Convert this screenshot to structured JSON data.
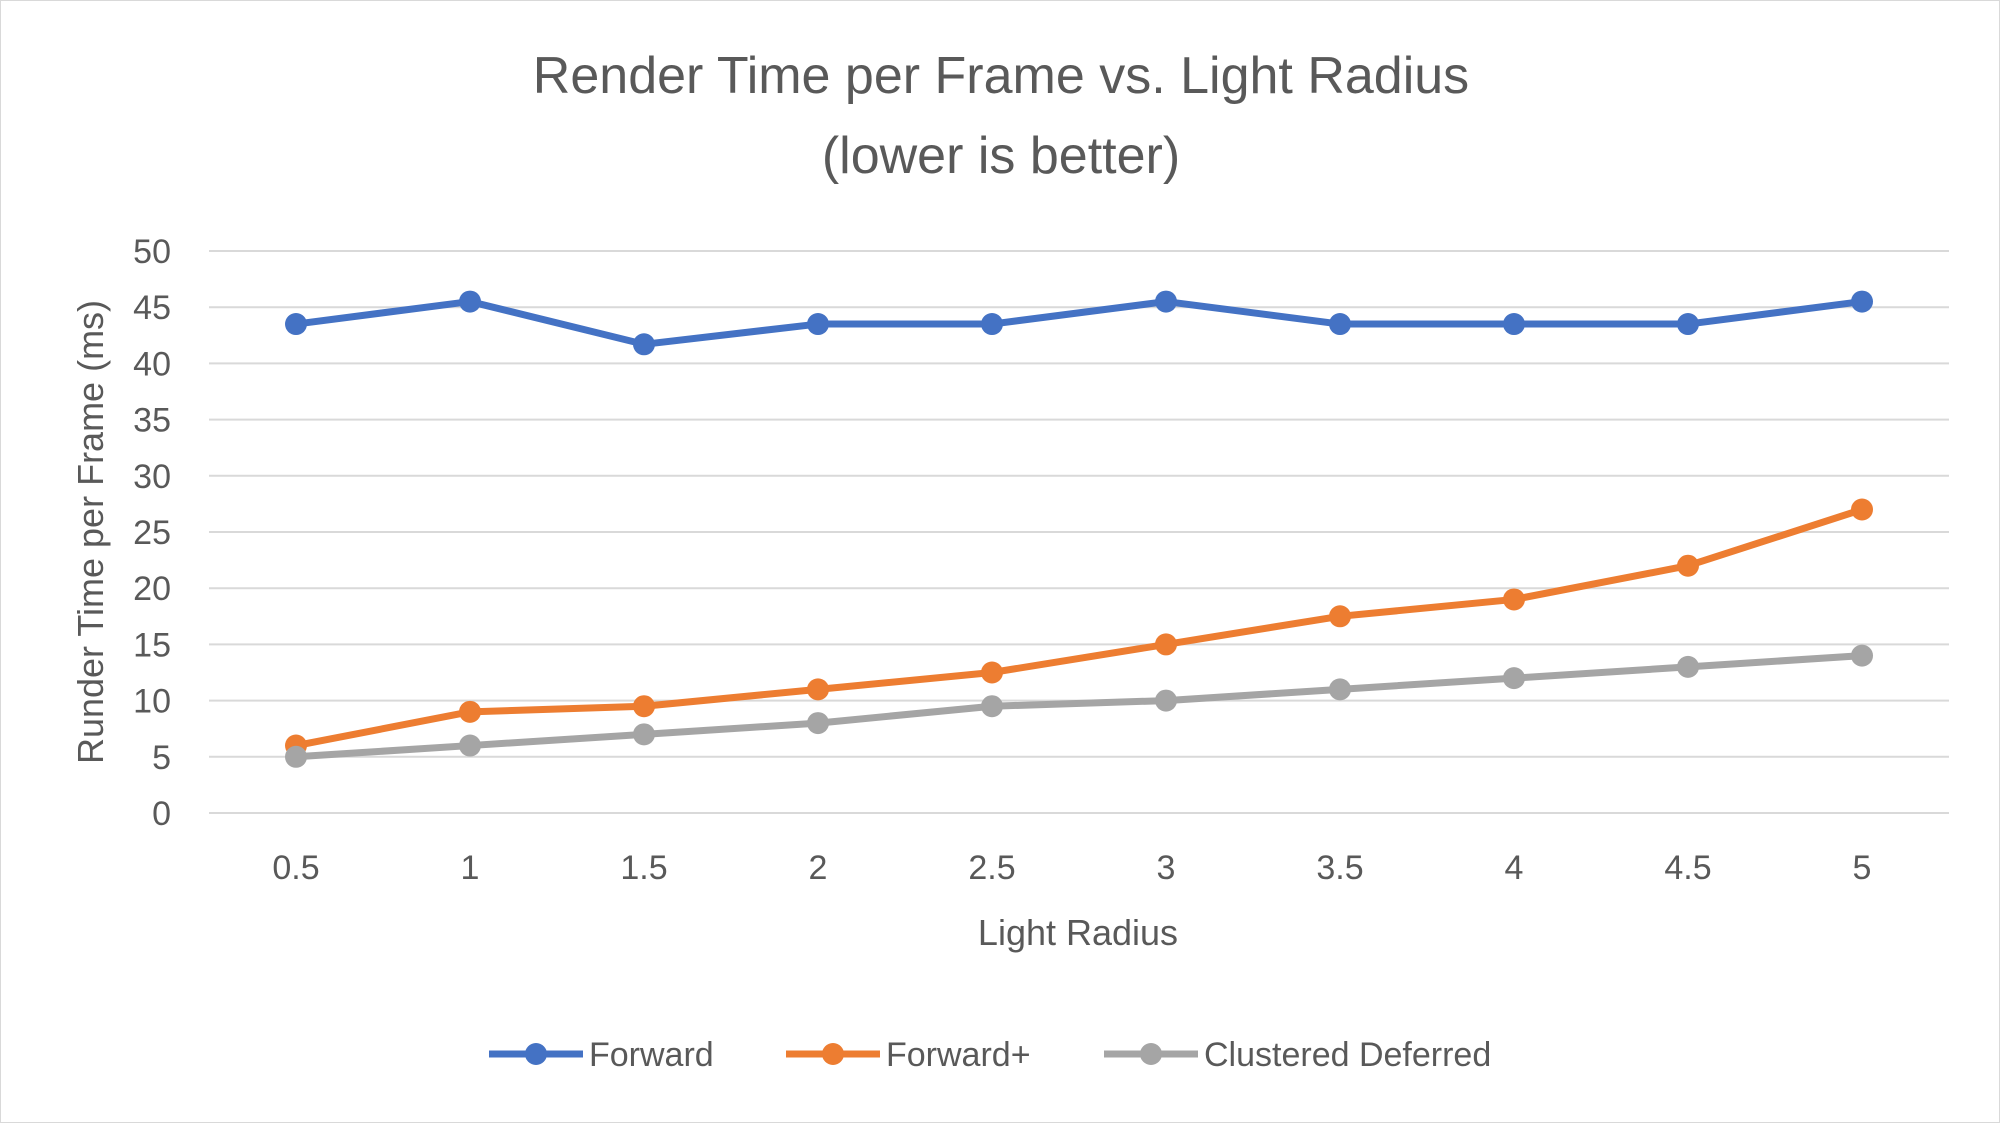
{
  "chart_data": {
    "type": "line",
    "title": [
      "Render Time per Frame vs. Light Radius",
      "(lower is better)"
    ],
    "xlabel": "Light Radius",
    "ylabel": "Runder Time per Frame (ms)",
    "categories": [
      "0.5",
      "1",
      "1.5",
      "2",
      "2.5",
      "3",
      "3.5",
      "4",
      "4.5",
      "5"
    ],
    "ylim": [
      0,
      50
    ],
    "yticks": [
      "0",
      "5",
      "10",
      "15",
      "20",
      "25",
      "30",
      "35",
      "40",
      "45",
      "50"
    ],
    "grid": "horizontal",
    "legend_position": "bottom",
    "series": [
      {
        "name": "Forward",
        "color": "#4472c4",
        "values": [
          43.5,
          45.5,
          41.7,
          43.5,
          43.5,
          45.5,
          43.5,
          43.5,
          43.5,
          45.5
        ]
      },
      {
        "name": "Forward+",
        "color": "#ed7d31",
        "values": [
          6,
          9,
          9.5,
          11,
          12.5,
          15,
          17.5,
          19,
          22,
          27
        ]
      },
      {
        "name": "Clustered Deferred",
        "color": "#a5a5a5",
        "values": [
          5,
          6,
          7,
          8,
          9.5,
          10,
          11,
          12,
          13,
          14
        ]
      }
    ]
  }
}
